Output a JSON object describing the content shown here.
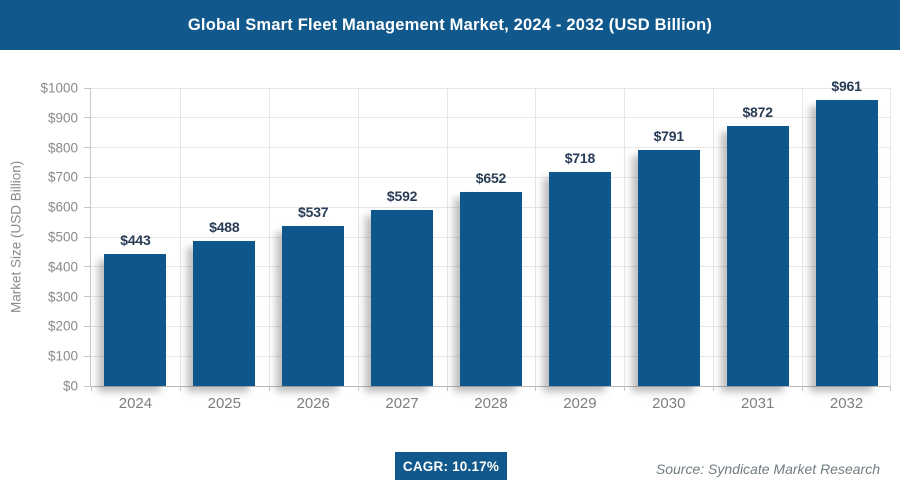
{
  "header": {
    "title": "Global Smart Fleet Management Market, 2024 - 2032 (USD Billion)"
  },
  "colors": {
    "primary_blue": "#11588c",
    "bar_blue": "#0d578c",
    "value_label_navy": "#283c55",
    "axis_text_gray": "#8a8a8a",
    "grid_gray": "#e6e6e6",
    "source_gray": "#6f7c80"
  },
  "chart_data": {
    "type": "bar",
    "title": "Global Smart Fleet Management Market, 2024 - 2032 (USD Billion)",
    "categories": [
      "2024",
      "2025",
      "2026",
      "2027",
      "2028",
      "2029",
      "2030",
      "2031",
      "2032"
    ],
    "values": [
      443,
      488,
      537,
      592,
      652,
      718,
      791,
      872,
      961
    ],
    "bar_labels": [
      "$443",
      "$488",
      "$537",
      "$592",
      "$652",
      "$718",
      "$791",
      "$872",
      "$961"
    ],
    "xlabel": "",
    "ylabel": "Market Size (USD Billion)",
    "ylim": [
      0,
      1000
    ],
    "ytick_step": 100,
    "ytick_labels": [
      "$0",
      "$100",
      "$200",
      "$300",
      "$400",
      "$500",
      "$600",
      "$700",
      "$800",
      "$900",
      "$1000"
    ],
    "grid": "both",
    "legend_position": "none"
  },
  "footer": {
    "cagr_label": "CAGR: 10.17%",
    "source": "Source: Syndicate Market Research"
  }
}
